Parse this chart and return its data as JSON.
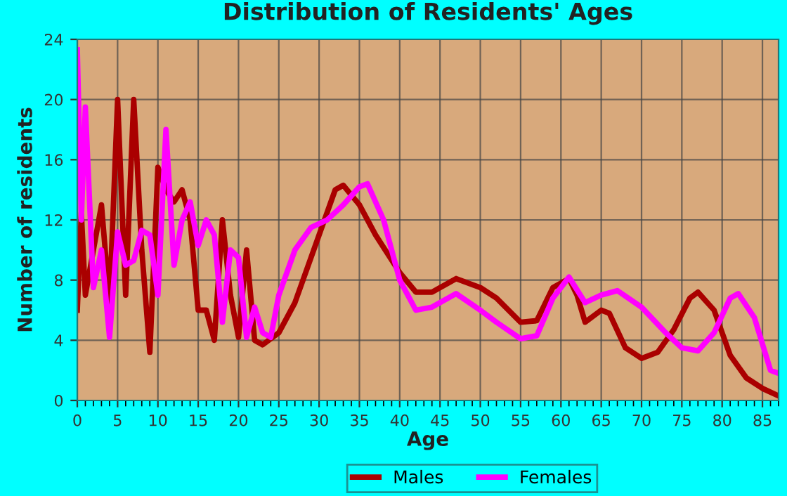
{
  "chart_data": {
    "type": "line",
    "title": "Distribution of Residents' Ages",
    "xlabel": "Age",
    "ylabel": "Number of residents",
    "xlim": [
      0,
      87
    ],
    "xticks": [
      0,
      5,
      10,
      15,
      20,
      25,
      30,
      35,
      40,
      45,
      50,
      55,
      60,
      65,
      70,
      75,
      80,
      85
    ],
    "ylim": [
      0,
      24
    ],
    "yticks": [
      0,
      4,
      8,
      12,
      16,
      20,
      24
    ],
    "grid": true,
    "legend": "bottom",
    "marker": "none",
    "line_style": "solid",
    "series": [
      {
        "name": "Males",
        "color": "#aa0000",
        "x": [
          0,
          0.5,
          1,
          2,
          3,
          4,
          5,
          6,
          7,
          8,
          9,
          10,
          11,
          12,
          13,
          14,
          15,
          16,
          17,
          18,
          19,
          20,
          21,
          22,
          23,
          25,
          27,
          30,
          32,
          33,
          35,
          37,
          40,
          42,
          44,
          47,
          50,
          52,
          55,
          57,
          59,
          61,
          62,
          63,
          65,
          66,
          68,
          70,
          72,
          74,
          76,
          77,
          79,
          81,
          83,
          85,
          87
        ],
        "values": [
          6,
          12.5,
          7,
          10,
          13,
          6.5,
          20,
          7,
          20,
          10,
          3.2,
          15.5,
          14,
          13.2,
          14,
          12,
          6,
          6,
          4,
          12,
          7,
          4.2,
          10,
          4,
          3.7,
          4.5,
          6.5,
          11,
          14,
          14.3,
          13,
          11,
          8.5,
          7.2,
          7.2,
          8.1,
          7.5,
          6.8,
          5.2,
          5.3,
          7.5,
          8.1,
          7,
          5.2,
          6,
          5.8,
          3.5,
          2.8,
          3.2,
          4.7,
          6.8,
          7.2,
          6,
          3,
          1.5,
          0.8,
          0.3
        ]
      },
      {
        "name": "Females",
        "color": "#ff00ff",
        "x": [
          0,
          0.5,
          1,
          2,
          3,
          4,
          5,
          6,
          7,
          8,
          9,
          10,
          11,
          12,
          13,
          14,
          15,
          16,
          17,
          18,
          19,
          20,
          21,
          22,
          23,
          24,
          25,
          27,
          29,
          31,
          33,
          35,
          36,
          38,
          40,
          42,
          44,
          47,
          50,
          52,
          55,
          57,
          59,
          61,
          63,
          65,
          67,
          70,
          73,
          75,
          77,
          79,
          81,
          82,
          84,
          86,
          87
        ],
        "values": [
          23.3,
          12,
          19.5,
          7.5,
          10,
          4.2,
          11.2,
          9,
          9.3,
          11.3,
          11,
          7,
          18,
          9,
          12,
          13.2,
          10.3,
          12,
          11,
          5.2,
          10,
          9.5,
          4.2,
          6.2,
          4.5,
          4.2,
          7,
          10,
          11.5,
          12,
          13,
          14.2,
          14.4,
          12,
          8,
          6,
          6.2,
          7.1,
          6,
          5.2,
          4.1,
          4.3,
          6.8,
          8.2,
          6.5,
          7,
          7.3,
          6.2,
          4.5,
          3.5,
          3.3,
          4.5,
          6.8,
          7.1,
          5.5,
          2,
          1.8
        ]
      }
    ]
  }
}
